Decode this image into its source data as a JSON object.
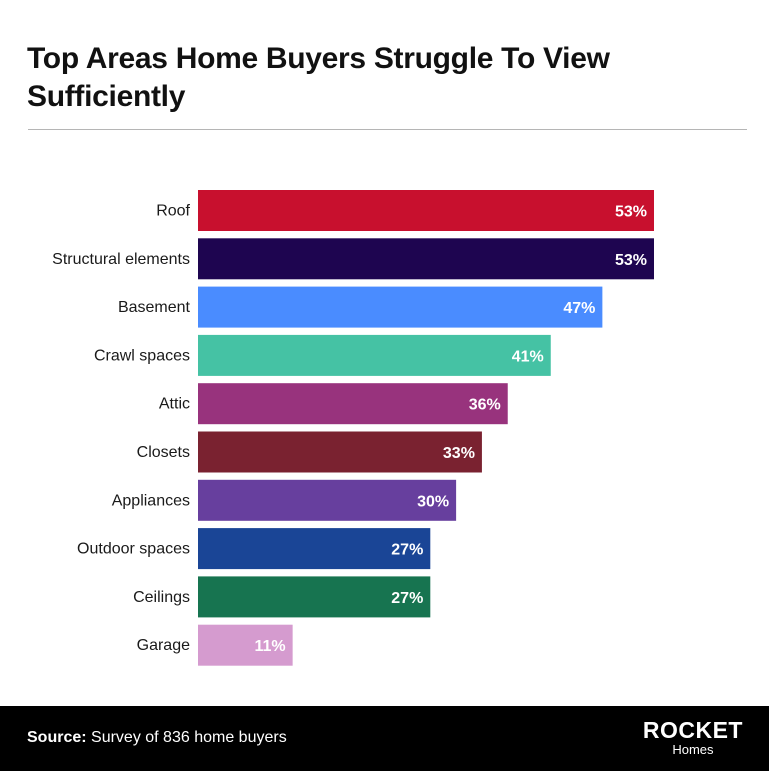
{
  "title": "Top Areas Home Buyers Struggle To View Sufficiently",
  "footer": {
    "source_prefix": "Source:",
    "source_text": " Survey of 836 home buyers",
    "logo_word": "ROCKET",
    "logo_sub": "Homes"
  },
  "chart_data": {
    "type": "bar",
    "orientation": "horizontal",
    "title": "Top Areas Home Buyers Struggle To View Sufficiently",
    "xlabel": "",
    "ylabel": "",
    "xlim": [
      0,
      53
    ],
    "grid": false,
    "categories": [
      "Roof",
      "Structural elements",
      "Basement",
      "Crawl spaces",
      "Attic",
      "Closets",
      "Appliances",
      "Outdoor spaces",
      "Ceilings",
      "Garage"
    ],
    "values": [
      53,
      53,
      47,
      41,
      36,
      33,
      30,
      27,
      27,
      11
    ],
    "value_labels": [
      "53%",
      "53%",
      "47%",
      "41%",
      "36%",
      "33%",
      "30%",
      "27%",
      "27%",
      "11%"
    ],
    "colors": [
      "#c8102e",
      "#1e0550",
      "#4a8cff",
      "#45c2a4",
      "#98337d",
      "#7a2230",
      "#673f9e",
      "#1a4596",
      "#177450",
      "#d59bcf"
    ]
  }
}
